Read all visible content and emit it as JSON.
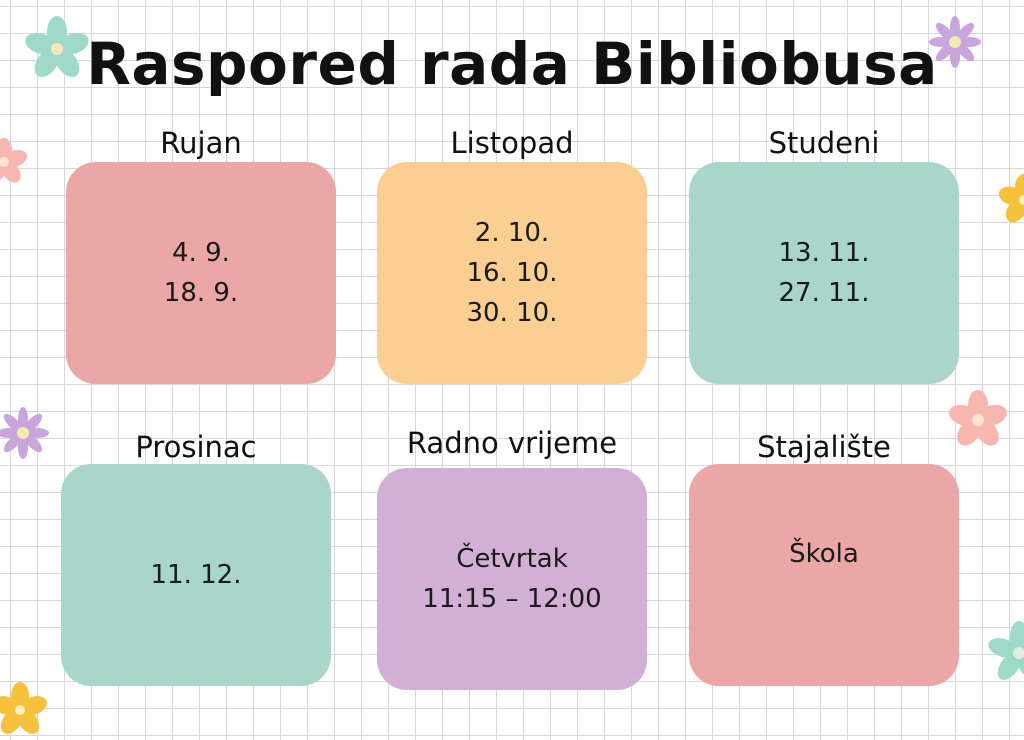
{
  "title": "Raspored rada Bibliobusa",
  "colors": {
    "pink": "#eba6a6",
    "orange": "#fbce92",
    "mint": "#a9d6c9",
    "lavender": "#d2b0d5",
    "flower_mint": "#9fd9c7",
    "flower_purple": "#c8a6dd",
    "flower_pink": "#f7b7b0",
    "flower_yellow": "#f6c23d"
  },
  "months": [
    {
      "label": "Rujan",
      "dates": [
        "4. 9.",
        "18. 9."
      ]
    },
    {
      "label": "Listopad",
      "dates": [
        "2. 10.",
        "16. 10.",
        "30. 10."
      ]
    },
    {
      "label": "Studeni",
      "dates": [
        "13. 11.",
        "27. 11."
      ]
    },
    {
      "label": "Prosinac",
      "dates": [
        "11. 12."
      ]
    }
  ],
  "working_hours": {
    "label": "Radno vrijeme",
    "day": "Četvrtak",
    "time": "11:15 – 12:00"
  },
  "stop": {
    "label": "Stajalište",
    "location": "Škola"
  },
  "decorations": [
    "flower-icon"
  ]
}
